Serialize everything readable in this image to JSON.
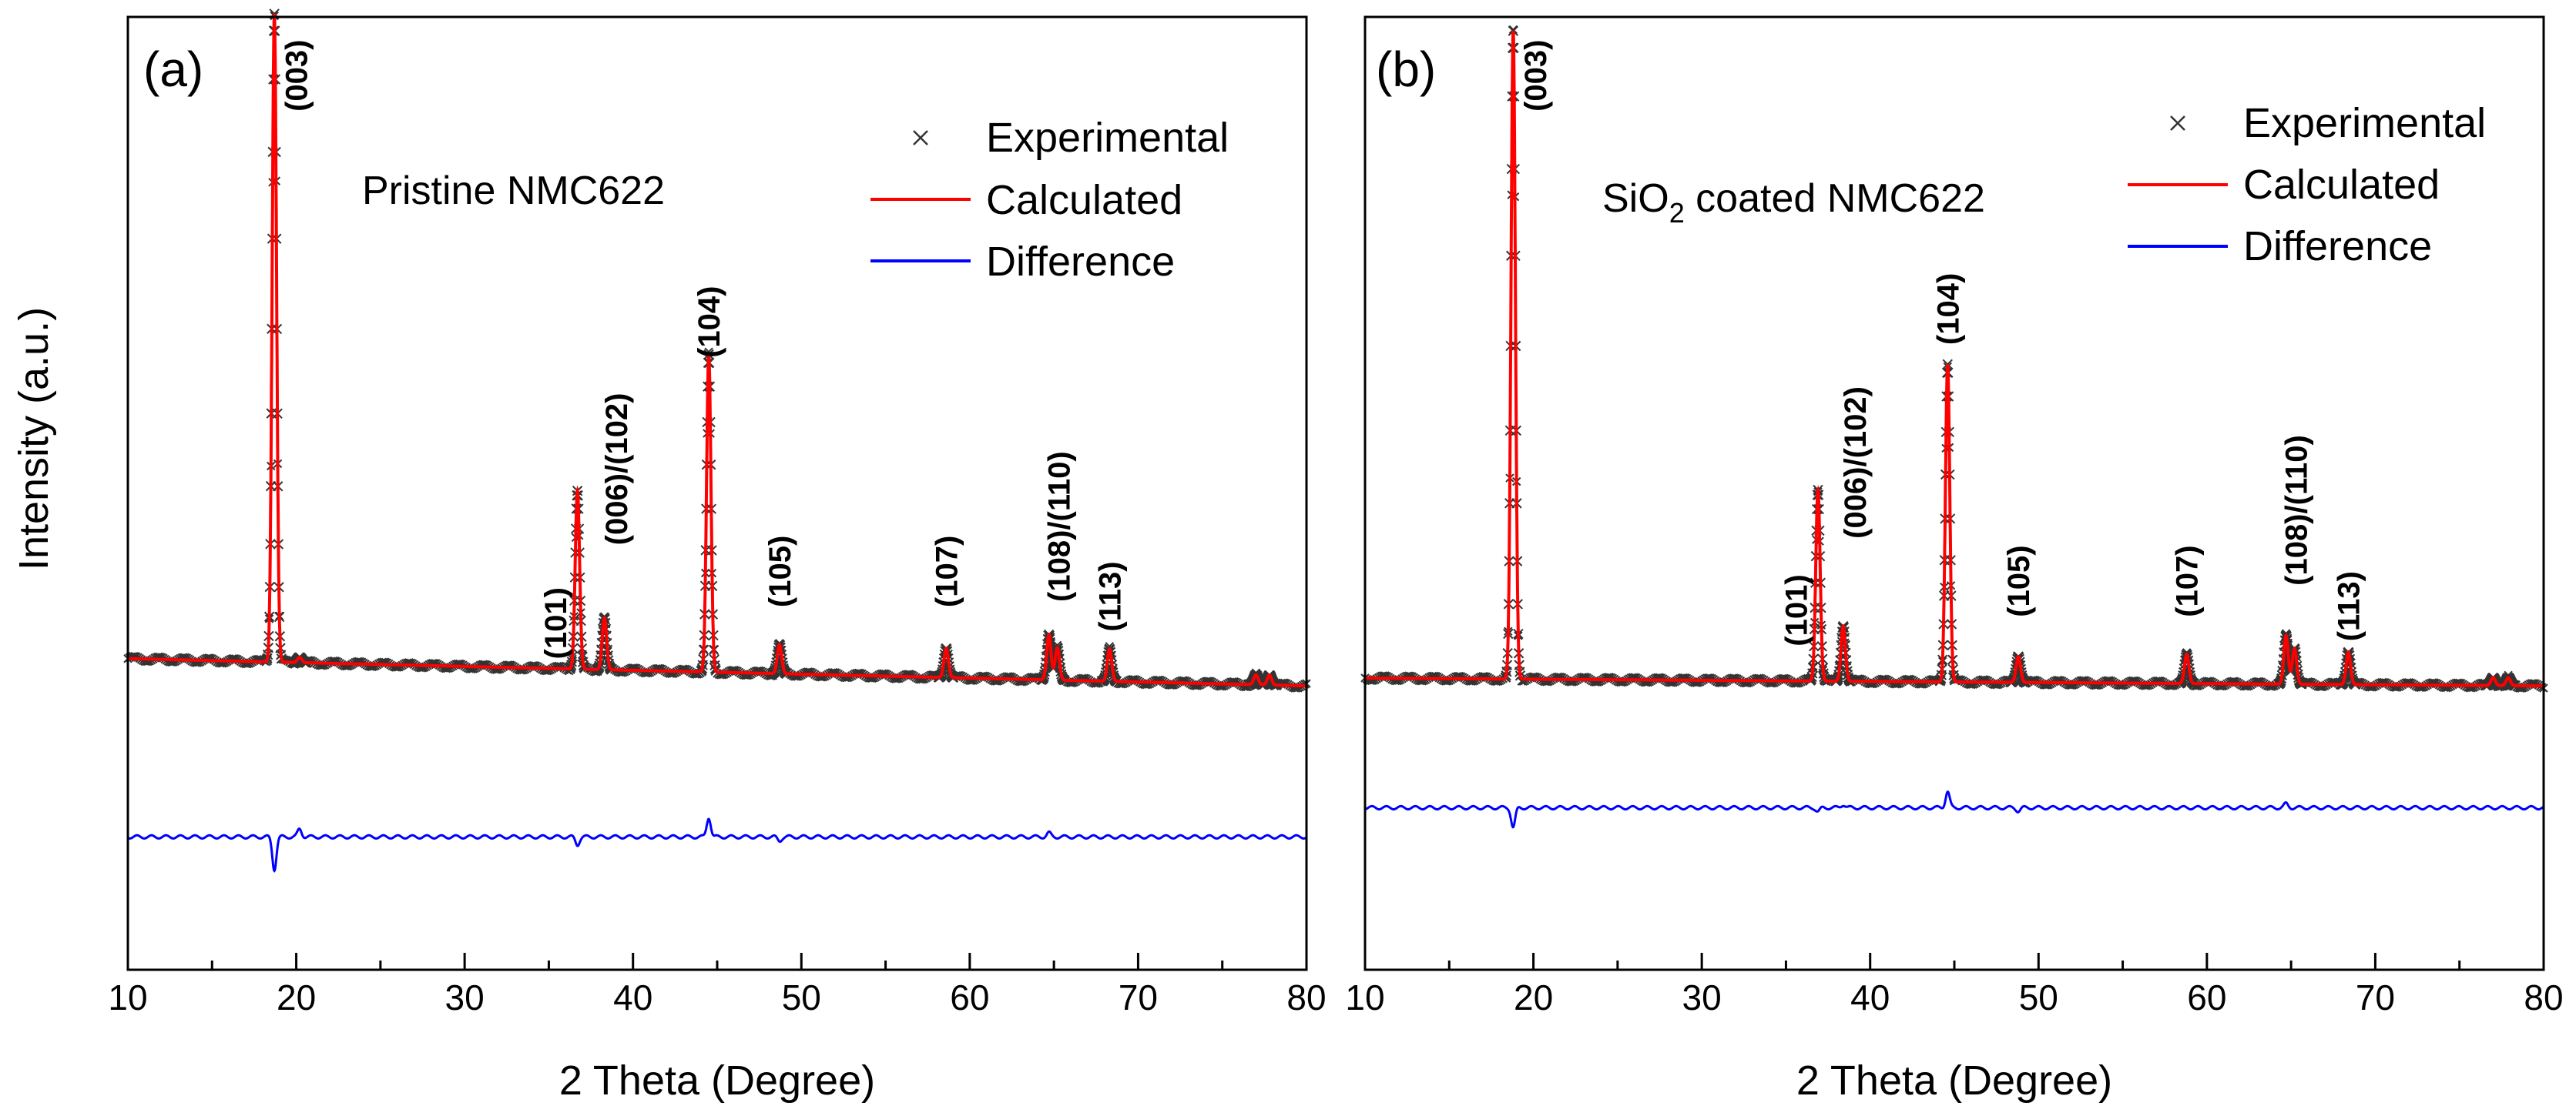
{
  "chart_data": [
    {
      "type": "line",
      "panel_label": "(a)",
      "sample_label": "Pristine NMC622",
      "xlabel": "2 Theta (Degree)",
      "ylabel": "Intensity (a.u.)",
      "xlim": [
        10,
        80
      ],
      "ylim": [
        -0.45,
        1.02
      ],
      "xticks": [
        "10",
        "20",
        "30",
        "40",
        "50",
        "60",
        "70",
        "80"
      ],
      "y_tick_labels_shown": false,
      "background": {
        "start": 0.03,
        "end": -0.012
      },
      "peaks": [
        {
          "label": "(003)",
          "x": 18.7,
          "intensity": 1.0,
          "label_x": 20.0,
          "label_y": 0.985
        },
        {
          "label": "(101)",
          "x": 36.7,
          "intensity": 0.275,
          "label_x": 35.4,
          "label_y": 0.14
        },
        {
          "label": "(006)/(102)",
          "x": 38.3,
          "intensity": 0.08,
          "label_x": 39.0,
          "label_y": 0.44
        },
        {
          "label": "(104)",
          "x": 44.5,
          "intensity": 0.49,
          "label_x": 44.5,
          "label_y": 0.605
        },
        {
          "label": "(105)",
          "x": 48.7,
          "intensity": 0.045,
          "label_x": 48.7,
          "label_y": 0.22
        },
        {
          "label": "(107)",
          "x": 58.6,
          "intensity": 0.045,
          "label_x": 58.6,
          "label_y": 0.22
        },
        {
          "label": "(108)/(110)",
          "x": 64.7,
          "intensity": 0.07,
          "label_x": 65.3,
          "label_y": 0.35
        },
        {
          "label": "(113)",
          "x": 68.3,
          "intensity": 0.05,
          "label_x": 68.3,
          "label_y": 0.18
        }
      ],
      "minor_peaks": [
        {
          "x": 20.2,
          "intensity": 0.008
        },
        {
          "x": 65.2,
          "intensity": 0.05
        },
        {
          "x": 77.0,
          "intensity": 0.015
        },
        {
          "x": 77.8,
          "intensity": 0.015
        }
      ],
      "difference": {
        "baseline": -0.245,
        "features": [
          {
            "x": 18.7,
            "amplitude": -0.05
          },
          {
            "x": 20.2,
            "amplitude": 0.012
          },
          {
            "x": 36.7,
            "amplitude": -0.012
          },
          {
            "x": 44.5,
            "amplitude": 0.03
          },
          {
            "x": 48.7,
            "amplitude": -0.006
          },
          {
            "x": 64.7,
            "amplitude": 0.006
          }
        ]
      },
      "legend": {
        "position": "top-right",
        "entries": [
          {
            "label": "Experimental",
            "marker": "x",
            "color": "#333333"
          },
          {
            "label": "Calculated",
            "marker": "line",
            "color": "#ff0000"
          },
          {
            "label": "Difference",
            "marker": "line",
            "color": "#0000ff"
          }
        ]
      }
    },
    {
      "type": "line",
      "panel_label": "(b)",
      "sample_label": {
        "prefix": "SiO",
        "subscript": "2",
        "suffix": " coated NMC622"
      },
      "xlabel": "2 Theta (Degree)",
      "ylabel": "",
      "xlim": [
        10,
        80
      ],
      "ylim": [
        -0.45,
        1.02
      ],
      "xticks": [
        "10",
        "20",
        "30",
        "40",
        "50",
        "60",
        "70",
        "80"
      ],
      "y_tick_labels_shown": false,
      "background": {
        "start": 0.0,
        "end": -0.012
      },
      "peaks": [
        {
          "label": "(003)",
          "x": 18.8,
          "intensity": 1.0,
          "label_x": 20.1,
          "label_y": 0.985
        },
        {
          "label": "(101)",
          "x": 36.9,
          "intensity": 0.295,
          "label_x": 35.6,
          "label_y": 0.16
        },
        {
          "label": "(006)/(102)",
          "x": 38.4,
          "intensity": 0.085,
          "label_x": 39.1,
          "label_y": 0.45
        },
        {
          "label": "(104)",
          "x": 44.6,
          "intensity": 0.49,
          "label_x": 44.6,
          "label_y": 0.625
        },
        {
          "label": "(105)",
          "x": 48.8,
          "intensity": 0.04,
          "label_x": 48.8,
          "label_y": 0.205
        },
        {
          "label": "(107)",
          "x": 58.8,
          "intensity": 0.045,
          "label_x": 58.8,
          "label_y": 0.205
        },
        {
          "label": "(108)/(110)",
          "x": 64.7,
          "intensity": 0.075,
          "label_x": 65.3,
          "label_y": 0.375
        },
        {
          "label": "(113)",
          "x": 68.4,
          "intensity": 0.05,
          "label_x": 68.4,
          "label_y": 0.165
        }
      ],
      "minor_peaks": [
        {
          "x": 65.2,
          "intensity": 0.055
        },
        {
          "x": 77.0,
          "intensity": 0.012
        },
        {
          "x": 77.9,
          "intensity": 0.012
        }
      ],
      "difference": {
        "baseline": -0.2,
        "features": [
          {
            "x": 18.8,
            "amplitude": -0.03
          },
          {
            "x": 36.9,
            "amplitude": -0.006
          },
          {
            "x": 38.4,
            "amplitude": 0.005
          },
          {
            "x": 44.6,
            "amplitude": 0.025
          },
          {
            "x": 48.8,
            "amplitude": -0.005
          },
          {
            "x": 64.7,
            "amplitude": 0.006
          }
        ]
      },
      "legend": {
        "position": "top-right",
        "entries": [
          {
            "label": "Experimental",
            "marker": "x",
            "color": "#333333"
          },
          {
            "label": "Calculated",
            "marker": "line",
            "color": "#ff0000"
          },
          {
            "label": "Difference",
            "marker": "line",
            "color": "#0000ff"
          }
        ]
      }
    }
  ]
}
